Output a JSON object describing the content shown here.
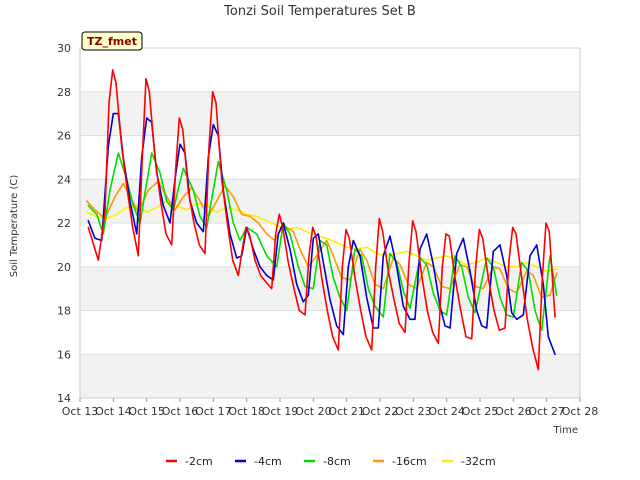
{
  "chart_data": {
    "type": "line",
    "title": "Tonzi Soil Temperatures Set B",
    "xlabel": "Time",
    "ylabel": "Soil Temperature (C)",
    "badge": "TZ_fmet",
    "ylim": [
      14,
      30
    ],
    "yticks": [
      14,
      16,
      18,
      20,
      22,
      24,
      26,
      28,
      30
    ],
    "xlim": [
      13,
      28
    ],
    "xticks": [
      {
        "v": 13,
        "label": "Oct 13"
      },
      {
        "v": 14,
        "label": "Oct 14"
      },
      {
        "v": 15,
        "label": "Oct 15"
      },
      {
        "v": 16,
        "label": "Oct 16"
      },
      {
        "v": 17,
        "label": "Oct 17"
      },
      {
        "v": 18,
        "label": "Oct 18"
      },
      {
        "v": 19,
        "label": "Oct 19"
      },
      {
        "v": 20,
        "label": "Oct 20"
      },
      {
        "v": 21,
        "label": "Oct 21"
      },
      {
        "v": 22,
        "label": "Oct 22"
      },
      {
        "v": 23,
        "label": "Oct 23"
      },
      {
        "v": 24,
        "label": "Oct 24"
      },
      {
        "v": 25,
        "label": "Oct 25"
      },
      {
        "v": 26,
        "label": "Oct 26"
      },
      {
        "v": 27,
        "label": "Oct 27"
      },
      {
        "v": 28,
        "label": "Oct 28"
      }
    ],
    "grid": true,
    "legend_position": "bottom",
    "series": [
      {
        "name": "-2cm",
        "color": "#ff0000",
        "x": [
          13.25,
          13.35,
          13.55,
          13.75,
          13.87,
          13.98,
          14.08,
          14.25,
          14.42,
          14.58,
          14.75,
          14.87,
          14.98,
          15.08,
          15.25,
          15.42,
          15.58,
          15.75,
          15.87,
          15.98,
          16.08,
          16.25,
          16.42,
          16.58,
          16.75,
          16.87,
          16.98,
          17.08,
          17.25,
          17.42,
          17.58,
          17.75,
          17.87,
          17.98,
          18.08,
          18.25,
          18.42,
          18.58,
          18.75,
          18.87,
          18.98,
          19.08,
          19.25,
          19.42,
          19.58,
          19.75,
          19.87,
          19.98,
          20.08,
          20.25,
          20.42,
          20.58,
          20.75,
          20.87,
          20.98,
          21.08,
          21.25,
          21.42,
          21.58,
          21.75,
          21.87,
          21.98,
          22.08,
          22.25,
          22.42,
          22.58,
          22.75,
          22.87,
          22.98,
          23.08,
          23.25,
          23.42,
          23.58,
          23.75,
          23.87,
          23.98,
          24.08,
          24.25,
          24.42,
          24.58,
          24.75,
          24.87,
          24.98,
          25.08,
          25.25,
          25.42,
          25.58,
          25.75,
          25.87,
          25.98,
          26.08,
          26.25,
          26.42,
          26.58,
          26.75,
          26.87,
          26.98,
          27.08,
          27.25
        ],
        "y": [
          21.8,
          21.3,
          20.3,
          22.5,
          27.5,
          29.0,
          28.4,
          25.5,
          23.5,
          21.8,
          20.5,
          25.0,
          28.6,
          28.0,
          25.0,
          23.0,
          21.5,
          21.0,
          24.5,
          26.8,
          26.3,
          23.5,
          22.0,
          21.0,
          20.6,
          25.5,
          28.0,
          27.5,
          24.0,
          22.0,
          20.3,
          19.6,
          20.8,
          21.8,
          21.5,
          20.3,
          19.6,
          19.3,
          19.0,
          21.5,
          22.4,
          21.8,
          20.2,
          19.0,
          18.0,
          17.8,
          20.5,
          21.8,
          21.4,
          19.5,
          18.0,
          16.8,
          16.2,
          20.0,
          21.7,
          21.3,
          19.5,
          18.0,
          16.8,
          16.2,
          20.0,
          22.2,
          21.6,
          19.8,
          18.5,
          17.4,
          17.0,
          20.2,
          22.1,
          21.6,
          19.6,
          18.0,
          17.0,
          16.5,
          20.0,
          21.5,
          21.4,
          19.5,
          18.0,
          16.8,
          16.7,
          20.0,
          21.7,
          21.3,
          19.5,
          18.0,
          17.1,
          17.2,
          20.3,
          21.8,
          21.5,
          19.5,
          17.6,
          16.3,
          15.3,
          19.5,
          22.0,
          21.6,
          17.7
        ]
      },
      {
        "name": "-4cm",
        "color": "#0000cc",
        "x": [
          13.25,
          13.45,
          13.65,
          13.85,
          14.0,
          14.15,
          14.3,
          14.5,
          14.7,
          14.85,
          15.0,
          15.15,
          15.3,
          15.5,
          15.7,
          15.85,
          16.0,
          16.15,
          16.3,
          16.5,
          16.7,
          16.85,
          17.0,
          17.15,
          17.3,
          17.5,
          17.7,
          17.85,
          18.0,
          18.2,
          18.4,
          18.6,
          18.8,
          18.95,
          19.1,
          19.3,
          19.5,
          19.7,
          19.85,
          20.0,
          20.15,
          20.3,
          20.5,
          20.7,
          20.9,
          21.05,
          21.2,
          21.4,
          21.6,
          21.8,
          21.95,
          22.1,
          22.3,
          22.5,
          22.7,
          22.9,
          23.05,
          23.2,
          23.4,
          23.6,
          23.8,
          23.95,
          24.1,
          24.3,
          24.5,
          24.7,
          24.9,
          25.05,
          25.2,
          25.4,
          25.6,
          25.8,
          25.95,
          26.1,
          26.3,
          26.5,
          26.7,
          26.9,
          27.05,
          27.25
        ],
        "y": [
          22.1,
          21.3,
          21.2,
          25.5,
          27.0,
          27.0,
          25.0,
          23.0,
          21.5,
          25.0,
          26.8,
          26.6,
          24.3,
          22.8,
          22.0,
          24.0,
          25.6,
          25.2,
          23.0,
          22.0,
          21.6,
          25.0,
          26.5,
          26.0,
          23.5,
          21.5,
          20.4,
          20.5,
          21.8,
          20.8,
          20.0,
          19.6,
          19.4,
          21.5,
          22.0,
          20.8,
          19.2,
          18.4,
          18.7,
          21.3,
          21.5,
          20.2,
          18.5,
          17.3,
          16.9,
          20.0,
          21.2,
          20.5,
          18.6,
          17.2,
          17.2,
          20.5,
          21.4,
          20.0,
          18.2,
          17.6,
          17.6,
          20.8,
          21.5,
          20.1,
          18.2,
          17.3,
          17.2,
          20.6,
          21.3,
          19.8,
          18.0,
          17.3,
          17.2,
          20.7,
          21.0,
          19.6,
          17.9,
          17.6,
          17.8,
          20.5,
          21.0,
          19.2,
          16.8,
          16.0
        ]
      },
      {
        "name": "-8cm",
        "color": "#00dd00",
        "x": [
          13.25,
          13.5,
          13.7,
          13.9,
          14.15,
          14.4,
          14.6,
          14.8,
          15.15,
          15.4,
          15.6,
          15.8,
          16.1,
          16.4,
          16.6,
          16.8,
          17.15,
          17.4,
          17.6,
          17.8,
          18.0,
          18.3,
          18.6,
          18.9,
          19.1,
          19.3,
          19.55,
          19.75,
          20.0,
          20.2,
          20.4,
          20.6,
          20.8,
          21.0,
          21.25,
          21.45,
          21.65,
          21.85,
          22.1,
          22.3,
          22.5,
          22.7,
          22.9,
          23.2,
          23.4,
          23.6,
          23.8,
          24.0,
          24.25,
          24.45,
          24.65,
          24.85,
          25.2,
          25.4,
          25.6,
          25.8,
          26.0,
          26.25,
          26.45,
          26.65,
          26.85,
          27.1,
          27.3
        ],
        "y": [
          22.8,
          22.4,
          21.5,
          23.5,
          25.2,
          24.0,
          22.8,
          22.0,
          25.2,
          24.3,
          23.0,
          22.6,
          24.5,
          23.5,
          22.3,
          21.8,
          24.8,
          23.5,
          22.0,
          21.2,
          21.8,
          21.5,
          20.5,
          20.0,
          22.0,
          21.5,
          20.0,
          19.1,
          19.0,
          21.2,
          21.0,
          19.5,
          18.6,
          18.0,
          20.8,
          20.5,
          19.0,
          18.2,
          17.7,
          20.6,
          20.2,
          18.9,
          18.1,
          20.4,
          20.1,
          18.8,
          18.0,
          17.8,
          20.5,
          20.0,
          18.6,
          17.9,
          20.4,
          20.0,
          18.6,
          17.8,
          17.7,
          20.2,
          19.8,
          18.0,
          17.1,
          20.5,
          18.7
        ]
      },
      {
        "name": "-16cm",
        "color": "#ff9900",
        "x": [
          13.2,
          13.45,
          13.75,
          14.05,
          14.3,
          14.5,
          14.75,
          15.05,
          15.35,
          15.6,
          15.85,
          16.1,
          16.35,
          16.6,
          16.85,
          17.1,
          17.35,
          17.6,
          17.85,
          18.1,
          18.35,
          18.6,
          18.85,
          19.1,
          19.4,
          19.6,
          19.85,
          20.1,
          20.4,
          20.6,
          20.85,
          21.1,
          21.4,
          21.6,
          21.85,
          22.1,
          22.4,
          22.6,
          22.85,
          23.1,
          23.4,
          23.6,
          23.85,
          24.1,
          24.4,
          24.6,
          24.85,
          25.1,
          25.4,
          25.6,
          25.85,
          26.1,
          26.4,
          26.6,
          26.85,
          27.1,
          27.3
        ],
        "y": [
          23.0,
          22.6,
          22.2,
          23.2,
          23.8,
          23.2,
          22.5,
          23.5,
          23.9,
          23.2,
          22.6,
          23.2,
          23.6,
          23.0,
          22.3,
          23.0,
          23.7,
          23.2,
          22.4,
          22.3,
          22.0,
          21.5,
          21.2,
          21.9,
          21.6,
          20.8,
          20.0,
          20.5,
          21.2,
          20.5,
          19.5,
          19.4,
          20.8,
          20.3,
          19.2,
          19.0,
          20.4,
          20.1,
          19.2,
          19.0,
          20.2,
          20.0,
          19.1,
          19.0,
          20.1,
          20.0,
          19.1,
          19.0,
          20.0,
          19.9,
          19.0,
          18.8,
          19.8,
          19.6,
          18.6,
          18.7,
          19.7
        ]
      },
      {
        "name": "-32cm",
        "color": "#ffee00",
        "x": [
          13.2,
          13.5,
          13.8,
          14.1,
          14.4,
          14.7,
          15.0,
          15.3,
          15.6,
          15.9,
          16.2,
          16.5,
          16.8,
          17.1,
          17.4,
          17.7,
          18.0,
          18.3,
          18.6,
          18.9,
          19.2,
          19.5,
          19.8,
          20.1,
          20.4,
          20.7,
          21.0,
          21.3,
          21.6,
          21.9,
          22.2,
          22.5,
          22.8,
          23.1,
          23.4,
          23.7,
          24.0,
          24.3,
          24.6,
          24.9,
          25.2,
          25.5,
          25.8,
          26.1,
          26.4,
          26.7,
          27.0,
          27.3
        ],
        "y": [
          22.5,
          22.3,
          22.2,
          22.4,
          22.7,
          22.8,
          22.5,
          22.7,
          23.0,
          22.8,
          22.6,
          22.9,
          22.8,
          22.5,
          22.7,
          22.6,
          22.4,
          22.3,
          22.1,
          21.9,
          21.7,
          21.8,
          21.6,
          21.4,
          21.3,
          21.1,
          20.9,
          20.8,
          20.9,
          20.6,
          20.5,
          20.6,
          20.7,
          20.5,
          20.3,
          20.4,
          20.5,
          20.3,
          20.1,
          20.2,
          20.4,
          20.2,
          20.0,
          20.0,
          20.2,
          20.0,
          19.8,
          19.9
        ]
      }
    ]
  }
}
